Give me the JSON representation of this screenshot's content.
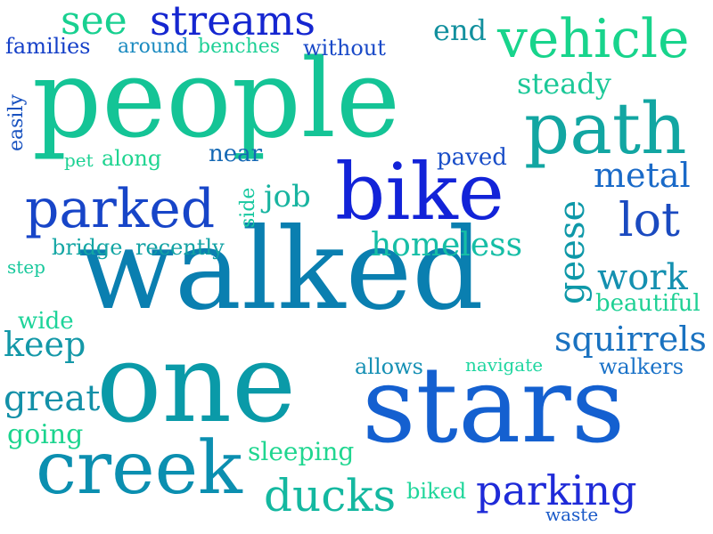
{
  "words": [
    {
      "text": "walked",
      "color": "#0a7fb0"
    },
    {
      "text": "one",
      "color": "#0a9aa8"
    },
    {
      "text": "stars",
      "color": "#1460d0"
    },
    {
      "text": "people",
      "color": "#14c496"
    },
    {
      "text": "bike",
      "color": "#1223d8"
    },
    {
      "text": "creek",
      "color": "#0b8fb0"
    },
    {
      "text": "path",
      "color": "#12a6a2"
    },
    {
      "text": "vehicle",
      "color": "#18d48c"
    },
    {
      "text": "parked",
      "color": "#1745c8"
    },
    {
      "text": "streams",
      "color": "#1526d0"
    },
    {
      "text": "parking",
      "color": "#1e2ad8"
    },
    {
      "text": "ducks",
      "color": "#14b8a0"
    },
    {
      "text": "squirrels",
      "color": "#1a72c0"
    },
    {
      "text": "lot",
      "color": "#1a4ac0"
    },
    {
      "text": "geese",
      "color": "#0e98a8"
    },
    {
      "text": "see",
      "color": "#18d090"
    },
    {
      "text": "metal",
      "color": "#1a6ac8"
    },
    {
      "text": "homeless",
      "color": "#16bea6"
    },
    {
      "text": "work",
      "color": "#1490b0"
    },
    {
      "text": "great",
      "color": "#1390a8"
    },
    {
      "text": "keep",
      "color": "#1498a8"
    },
    {
      "text": "steady",
      "color": "#1cc898"
    },
    {
      "text": "going",
      "color": "#1cd48e"
    },
    {
      "text": "sleeping",
      "color": "#20d690"
    },
    {
      "text": "beautiful",
      "color": "#1ed094"
    },
    {
      "text": "job",
      "color": "#18b4a0"
    },
    {
      "text": "end",
      "color": "#12909e"
    },
    {
      "text": "walkers",
      "color": "#1a72c8"
    },
    {
      "text": "bridge",
      "color": "#14a6a4"
    },
    {
      "text": "recently",
      "color": "#12a2a4"
    },
    {
      "text": "families",
      "color": "#1540c8"
    },
    {
      "text": "around",
      "color": "#1a8ac0"
    },
    {
      "text": "benches",
      "color": "#1ed096"
    },
    {
      "text": "without",
      "color": "#1a4ac8"
    },
    {
      "text": "near",
      "color": "#1468b4"
    },
    {
      "text": "paved",
      "color": "#1a4ec8"
    },
    {
      "text": "along",
      "color": "#1ed490"
    },
    {
      "text": "pet",
      "color": "#1ed294"
    },
    {
      "text": "wide",
      "color": "#1ed49a"
    },
    {
      "text": "allows",
      "color": "#1690b4"
    },
    {
      "text": "navigate",
      "color": "#1ed6a0"
    },
    {
      "text": "biked",
      "color": "#1ed69a"
    },
    {
      "text": "waste",
      "color": "#1a5ac8"
    },
    {
      "text": "step",
      "color": "#18c89c"
    },
    {
      "text": "easily",
      "color": "#1852c0"
    },
    {
      "text": "side",
      "color": "#18c8a0"
    }
  ]
}
